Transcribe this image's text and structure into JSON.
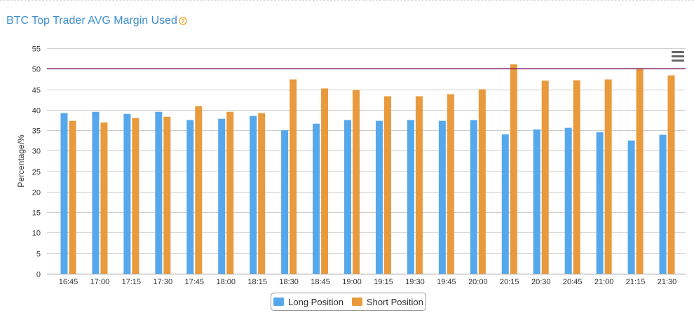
{
  "colors": {
    "title": "#3e8fd0",
    "help_icon": "#f0a020",
    "long": "#56a8ec",
    "short": "#e89a3c",
    "threshold_line": "#7a1f5c",
    "grid": "#cccccc",
    "axis_text": "#333333"
  },
  "icons": {
    "help": "question-circle-icon",
    "menu": "hamburger-menu-icon"
  },
  "chart_data": {
    "type": "bar",
    "title": "BTC Top Trader AVG Margin Used",
    "xlabel": "",
    "ylabel": "Percentage/%",
    "ylim": [
      0,
      55
    ],
    "yticks": [
      0,
      5,
      10,
      15,
      20,
      25,
      30,
      35,
      40,
      45,
      50,
      55
    ],
    "grid": true,
    "legend_position": "bottom-center",
    "threshold": 50,
    "categories": [
      "16:45",
      "17:00",
      "17:15",
      "17:30",
      "17:45",
      "18:00",
      "18:15",
      "18:30",
      "18:45",
      "19:00",
      "19:15",
      "19:30",
      "19:45",
      "20:00",
      "20:15",
      "20:30",
      "20:45",
      "21:00",
      "21:15",
      "21:30"
    ],
    "series": [
      {
        "name": "Long Position",
        "color": "#56a8ec",
        "values": [
          39.2,
          39.5,
          39.0,
          39.5,
          37.5,
          37.8,
          38.5,
          35.0,
          36.6,
          37.5,
          37.3,
          37.5,
          37.3,
          37.5,
          34.0,
          35.2,
          35.6,
          34.5,
          32.5,
          33.9
        ]
      },
      {
        "name": "Short Position",
        "color": "#e89a3c",
        "values": [
          37.3,
          36.9,
          38.0,
          38.3,
          40.9,
          39.5,
          39.2,
          47.4,
          45.2,
          44.8,
          43.3,
          43.3,
          43.8,
          45.0,
          51.1,
          47.1,
          47.2,
          47.4,
          50.0,
          48.4
        ]
      }
    ]
  }
}
